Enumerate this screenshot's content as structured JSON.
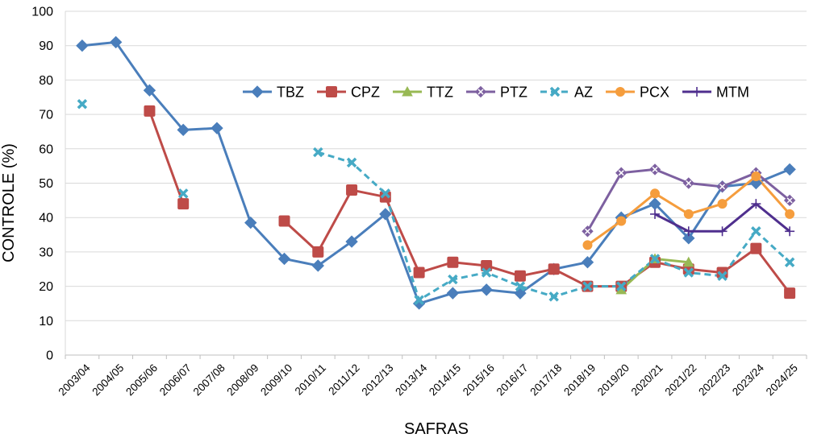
{
  "chart_data": {
    "type": "line",
    "xlabel": "SAFRAS",
    "ylabel": "CONTROLE (%)",
    "ylim": [
      0,
      100
    ],
    "yticks": [
      0,
      10,
      20,
      30,
      40,
      50,
      60,
      70,
      80,
      90,
      100
    ],
    "grid": true,
    "legend_position": "top-center-right",
    "categories": [
      "2003/04",
      "2004/05",
      "2005/06",
      "2006/07",
      "2007/08",
      "2008/09",
      "2009/10",
      "2010/11",
      "2011/12",
      "2012/13",
      "2013/14",
      "2014/15",
      "2015/16",
      "2016/17",
      "2017/18",
      "2018/19",
      "2019/20",
      "2020/21",
      "2021/22",
      "2022/23",
      "2023/24",
      "2024/25"
    ],
    "series": [
      {
        "name": "TBZ",
        "color": "#4a7ebb",
        "marker": "diamond",
        "dash": "solid",
        "values": [
          90,
          91,
          77,
          65.5,
          66,
          38.5,
          28,
          26,
          33,
          41,
          15,
          18,
          19,
          18,
          25,
          27,
          40,
          44,
          34,
          49,
          50,
          54
        ]
      },
      {
        "name": "CPZ",
        "color": "#be4b48",
        "marker": "square",
        "dash": "solid",
        "values": [
          null,
          null,
          71,
          44,
          null,
          null,
          39,
          30,
          48,
          46,
          24,
          27,
          26,
          23,
          25,
          20,
          20,
          27,
          25,
          24,
          31,
          18
        ]
      },
      {
        "name": "TTZ",
        "color": "#98b954",
        "marker": "triangle",
        "dash": "solid",
        "values": [
          null,
          null,
          null,
          null,
          null,
          null,
          null,
          null,
          null,
          null,
          null,
          null,
          null,
          null,
          null,
          null,
          19,
          28,
          27,
          null,
          null,
          null
        ]
      },
      {
        "name": "PTZ",
        "color": "#7d60a0",
        "marker": "diamond-x",
        "dash": "solid",
        "values": [
          null,
          null,
          null,
          null,
          null,
          null,
          null,
          null,
          null,
          null,
          null,
          null,
          null,
          null,
          null,
          36,
          53,
          54,
          50,
          49,
          53,
          45
        ]
      },
      {
        "name": "AZ",
        "color": "#46aac5",
        "marker": "x",
        "dash": "dashed",
        "values": [
          73,
          null,
          null,
          47,
          null,
          null,
          null,
          59,
          56,
          47,
          16,
          22,
          24,
          20,
          17,
          20,
          20,
          28,
          24,
          23,
          36,
          27
        ]
      },
      {
        "name": "PCX",
        "color": "#f59d3d",
        "marker": "circle",
        "dash": "solid",
        "values": [
          null,
          null,
          null,
          null,
          null,
          null,
          null,
          null,
          null,
          null,
          null,
          null,
          null,
          null,
          null,
          32,
          39,
          47,
          41,
          44,
          52,
          41
        ]
      },
      {
        "name": "MTM",
        "color": "#4f2f8e",
        "marker": "plus",
        "dash": "solid",
        "values": [
          null,
          null,
          null,
          null,
          null,
          null,
          null,
          null,
          null,
          null,
          null,
          null,
          null,
          null,
          null,
          null,
          null,
          41,
          36,
          36,
          44,
          36
        ]
      }
    ]
  }
}
